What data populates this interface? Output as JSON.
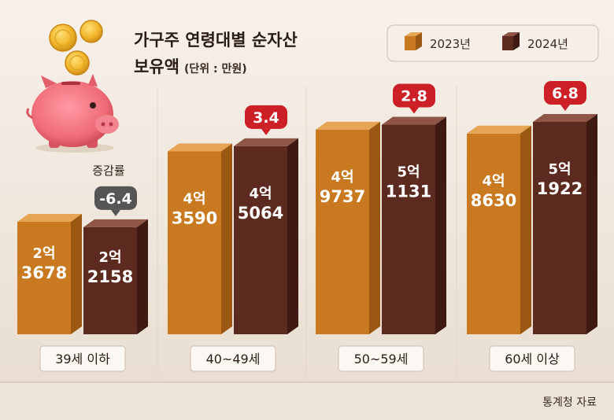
{
  "chart_data": {
    "type": "bar",
    "title": "가구주 연령대별 순자산",
    "subtitle": "보유액",
    "unit_note": "(단위 : 만원)",
    "categories": [
      "39세 이하",
      "40~49세",
      "50~59세",
      "60세 이상"
    ],
    "series": [
      {
        "name": "2023년",
        "values": [
          23678,
          43590,
          49737,
          48630
        ],
        "labels": [
          [
            "2억",
            "3678"
          ],
          [
            "4억",
            "3590"
          ],
          [
            "4억",
            "9737"
          ],
          [
            "4억",
            "8630"
          ]
        ],
        "color": "#c9791f"
      },
      {
        "name": "2024년",
        "values": [
          22158,
          45064,
          51131,
          51922
        ],
        "labels": [
          [
            "2억",
            "2158"
          ],
          [
            "4억",
            "5064"
          ],
          [
            "5억",
            "1131"
          ],
          [
            "5억",
            "1922"
          ]
        ],
        "color": "#5c2a1e"
      }
    ],
    "change_rate_label": "증감률",
    "change_rates": [
      "-6.4",
      "3.4",
      "2.8",
      "6.8"
    ],
    "change_colors": [
      "#555555",
      "#cc1f26",
      "#cc1f26",
      "#cc1f26"
    ],
    "source": "통계청 자료"
  }
}
